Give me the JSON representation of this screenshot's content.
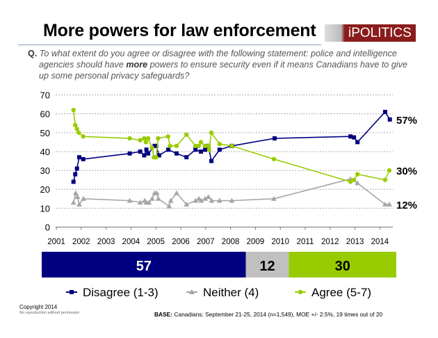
{
  "header": {
    "title": "More powers for law enforcement",
    "logo_text": "iPOLITICS",
    "question_prefix": "Q.",
    "question_part1": "To what extent do you agree or disagree with the following statement: police and intelligence agencies should have ",
    "question_emphasis": "more",
    "question_part2": " powers to ensure security even if it means Canadians have to give up some personal privacy safeguards?"
  },
  "chart_data": {
    "type": "line",
    "x_ticks": [
      "2001",
      "2002",
      "2003",
      "2004",
      "2005",
      "2006",
      "2007",
      "2008",
      "2009",
      "2010",
      "2011",
      "2012",
      "2013",
      "2014"
    ],
    "y_ticks": [
      "0",
      "10",
      "20",
      "30",
      "40",
      "50",
      "60",
      "70"
    ],
    "ylim": [
      0,
      70
    ],
    "xlim": [
      2001,
      2014.9
    ],
    "grid": "horizontal dotted",
    "legend_placement": "bottom",
    "series": [
      {
        "name": "Disagree (1-3)",
        "color": "#000080",
        "marker": "square",
        "end_label": "57%",
        "x": [
          2001.69,
          2001.76,
          2001.83,
          2001.92,
          2002.08,
          2003.95,
          2004.37,
          2004.53,
          2004.62,
          2004.69,
          2004.95,
          2005.01,
          2005.13,
          2005.5,
          2005.83,
          2006.23,
          2006.59,
          2006.81,
          2006.98,
          2007.11,
          2007.23,
          2007.56,
          2008.05,
          2009.77,
          2012.82,
          2012.96,
          2013.1,
          2014.21,
          2014.4
        ],
        "y": [
          24,
          28,
          31,
          37,
          36,
          39,
          40,
          38,
          41,
          39,
          43,
          43,
          38,
          41,
          39,
          37,
          41,
          40,
          41,
          43,
          35,
          41,
          43,
          47,
          48,
          47.5,
          45,
          61,
          57
        ]
      },
      {
        "name": "Neither (4)",
        "color": "#a6a6a6",
        "marker": "triangle",
        "end_label": "12%",
        "x": [
          2001.69,
          2001.78,
          2001.85,
          2001.92,
          2002.09,
          2003.95,
          2004.37,
          2004.55,
          2004.62,
          2004.72,
          2004.85,
          2004.95,
          2005.04,
          2005.1,
          2005.53,
          2005.6,
          2005.83,
          2006.23,
          2006.6,
          2006.73,
          2006.82,
          2006.98,
          2007.11,
          2007.24,
          2007.56,
          2008.05,
          2009.74,
          2012.82,
          2013.1,
          2014.21,
          2014.38
        ],
        "y": [
          13,
          18,
          16,
          12,
          15,
          14,
          13,
          14,
          13,
          13,
          15,
          18,
          18,
          15,
          11,
          14,
          18,
          12,
          14,
          15,
          14,
          15,
          16,
          14,
          14,
          14,
          15,
          25.5,
          23.3,
          12,
          12
        ]
      },
      {
        "name": "Agree (5-7)",
        "color": "#99cc00",
        "marker": "circle",
        "end_label": "30%",
        "x": [
          2001.69,
          2001.76,
          2001.83,
          2001.9,
          2002.08,
          2003.95,
          2004.37,
          2004.53,
          2004.6,
          2004.69,
          2004.85,
          2004.92,
          2005.01,
          2005.09,
          2005.49,
          2005.57,
          2005.83,
          2006.23,
          2006.59,
          2006.72,
          2006.81,
          2006.98,
          2007.11,
          2007.14,
          2007.23,
          2007.56,
          2008.05,
          2009.74,
          2012.82,
          2012.96,
          2013.1,
          2014.21,
          2014.38
        ],
        "y": [
          62,
          54,
          52,
          50,
          48,
          47,
          46,
          47,
          45,
          47,
          42,
          37,
          37,
          47,
          48,
          43,
          43,
          49,
          43,
          43,
          45,
          43,
          43,
          41,
          50,
          44,
          43,
          36,
          24,
          25,
          28,
          25,
          30
        ]
      }
    ],
    "summary_bar": {
      "segments": [
        {
          "label": "57",
          "value": 57,
          "color": "#000080",
          "text_color": "#ffffff"
        },
        {
          "label": "12",
          "value": 12,
          "color": "#c0c0c0",
          "text_color": "#000000"
        },
        {
          "label": "30",
          "value": 30,
          "color": "#99cc00",
          "text_color": "#000000"
        }
      ]
    }
  },
  "footer": {
    "copyright": "Copyright 2014",
    "notice": "No reproduction without permission",
    "base_label": "BASE:",
    "base_text": " Canadians; September 21-25, 2014 (n=1,549), MOE +/- 2.5%, 19 times out of 20"
  }
}
